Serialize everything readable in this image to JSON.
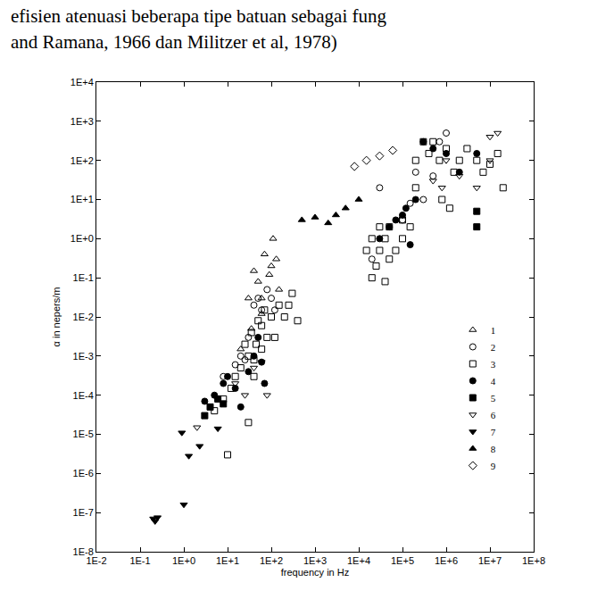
{
  "chart_data": {
    "type": "scatter",
    "title": "efisien atenuasi beberapa tipe batuan sebagai fung",
    "subtitle": "and Ramana, 1966 dan Militzer et al, 1978)",
    "x_label": "frequency in Hz",
    "y_label": "α in nepers/m",
    "log": true,
    "grid": false,
    "legend": "right",
    "xlim": [
      0.01,
      100000000
    ],
    "ylim": [
      1e-08,
      10000
    ],
    "xticks": [
      {
        "value": 0.01,
        "label": "1E-2"
      },
      {
        "value": 0.1,
        "label": "1E-1"
      },
      {
        "value": 1,
        "label": "1E+0"
      },
      {
        "value": 10,
        "label": "1E+1"
      },
      {
        "value": 100,
        "label": "1E+2"
      },
      {
        "value": 1000,
        "label": "1E+3"
      },
      {
        "value": 10000,
        "label": "1E+4"
      },
      {
        "value": 100000,
        "label": "1E+5"
      },
      {
        "value": 1000000,
        "label": "1E+6"
      },
      {
        "value": 10000000,
        "label": "1E+7"
      },
      {
        "value": 100000000,
        "label": "1E+8"
      }
    ],
    "yticks": [
      {
        "value": 1e-08,
        "label": "1E-8"
      },
      {
        "value": 1e-07,
        "label": "1E-7"
      },
      {
        "value": 1e-06,
        "label": "1E-6"
      },
      {
        "value": 1e-05,
        "label": "1E-5"
      },
      {
        "value": 0.0001,
        "label": "1E-4"
      },
      {
        "value": 0.001,
        "label": "1E-3"
      },
      {
        "value": 0.01,
        "label": "1E-2"
      },
      {
        "value": 0.1,
        "label": "1E-1"
      },
      {
        "value": 1,
        "label": "1E+0"
      },
      {
        "value": 10,
        "label": "1E+1"
      },
      {
        "value": 100,
        "label": "1E+2"
      },
      {
        "value": 1000,
        "label": "1E+3"
      },
      {
        "value": 10000,
        "label": "1E+4"
      }
    ],
    "series": [
      {
        "name": "1",
        "color": "#000000",
        "marker": "triangle-up-open",
        "x": [
          20,
          30,
          40,
          50,
          60,
          70,
          90,
          100,
          110,
          130,
          150,
          60,
          35
        ],
        "values": [
          0.0015,
          0.03,
          0.15,
          0.08,
          0.03,
          0.4,
          0.12,
          0.2,
          1,
          0.3,
          0.05,
          0.012,
          0.005
        ]
      },
      {
        "name": "2",
        "color": "#000000",
        "marker": "circle-open",
        "x": [
          8,
          15,
          20,
          30,
          40,
          50,
          60,
          80,
          100,
          120,
          25,
          30000,
          20000,
          100000,
          200000,
          500000,
          1000000,
          700000,
          300000,
          150000
        ],
        "values": [
          0.0003,
          0.0006,
          0.001,
          0.003,
          0.02,
          0.03,
          0.015,
          0.05,
          0.03,
          0.015,
          0.0008,
          20,
          0.3,
          3,
          50,
          40,
          500,
          300,
          10,
          8
        ]
      },
      {
        "name": "3",
        "color": "#000000",
        "marker": "square-open",
        "x": [
          5,
          8,
          10,
          12,
          15,
          20,
          25,
          30,
          35,
          40,
          45,
          50,
          60,
          70,
          80,
          100,
          120,
          150,
          200,
          250,
          300,
          400,
          30,
          40,
          60,
          15000,
          20000,
          20000,
          25000,
          30000,
          30000,
          40000,
          40000,
          50000,
          50000,
          70000,
          100000,
          100000,
          150000,
          200000,
          200000,
          300000,
          400000,
          500000,
          700000,
          1000000,
          1500000,
          2000000,
          3000000,
          5000000,
          7000000,
          10000000,
          15000000,
          20000000,
          800000,
          1200000
        ],
        "values": [
          4e-05,
          8e-05,
          3e-06,
          0.00015,
          0.0003,
          0.0005,
          0.002,
          0.001,
          0.004,
          0.0008,
          0.002,
          0.008,
          0.006,
          0.015,
          0.003,
          0.01,
          0.003,
          0.02,
          0.01,
          0.02,
          0.04,
          0.008,
          2e-05,
          0.0003,
          0.0015,
          0.5,
          0.1,
          1,
          0.2,
          0.5,
          2,
          1,
          0.08,
          0.3,
          2,
          0.5,
          1,
          3,
          2,
          100,
          20,
          300,
          150,
          300,
          100,
          200,
          50,
          100,
          200,
          100,
          50,
          80,
          150,
          20,
          10,
          6
        ]
      },
      {
        "name": "4",
        "color": "#000000",
        "marker": "circle",
        "x": [
          3,
          5,
          8,
          10,
          15,
          20,
          30,
          40,
          50,
          60,
          70,
          30000,
          50000,
          70000,
          100000,
          120000,
          150000,
          200000,
          300000,
          500000,
          1000000,
          2000000,
          5000000
        ],
        "values": [
          7e-05,
          0.0001,
          0.0002,
          0.0003,
          0.00015,
          5e-05,
          0.0004,
          0.001,
          0.003,
          0.0007,
          0.0002,
          1,
          2,
          3,
          4,
          6,
          0.7,
          10,
          300,
          200,
          150,
          50,
          150
        ]
      },
      {
        "name": "5",
        "color": "#000000",
        "marker": "square",
        "x": [
          3,
          4,
          6,
          8,
          5000000,
          5000000
        ],
        "values": [
          3e-05,
          5e-05,
          8e-05,
          6e-05,
          2,
          5
        ]
      },
      {
        "name": "6",
        "color": "#000000",
        "marker": "triangle-down-open",
        "x": [
          2,
          15,
          25,
          40,
          60,
          80,
          500000,
          800000,
          1000000,
          2000000,
          5000000,
          10000000,
          15000000,
          10000000
        ],
        "values": [
          1.5e-05,
          0.0002,
          0.0001,
          0.0005,
          0.0007,
          0.0001,
          30,
          20,
          100,
          40,
          20,
          400,
          500,
          100
        ]
      },
      {
        "name": "7",
        "color": "#000000",
        "marker": "triangle-down",
        "x": [
          0.2,
          0.22,
          0.25,
          1,
          0.9,
          1.3,
          2.3,
          6
        ],
        "values": [
          7e-08,
          6e-08,
          7.5e-08,
          1.6e-07,
          1.1e-05,
          2.8e-06,
          5e-06,
          1.4e-05
        ]
      },
      {
        "name": "8",
        "color": "#000000",
        "marker": "triangle-up",
        "x": [
          500,
          1000,
          2000,
          3000,
          5000,
          10000
        ],
        "values": [
          3,
          3.5,
          2.5,
          4,
          6,
          10
        ]
      },
      {
        "name": "9",
        "color": "#000000",
        "marker": "diamond-open",
        "x": [
          8000,
          15000,
          30000,
          60000
        ],
        "values": [
          70,
          100,
          130,
          180
        ]
      }
    ]
  }
}
